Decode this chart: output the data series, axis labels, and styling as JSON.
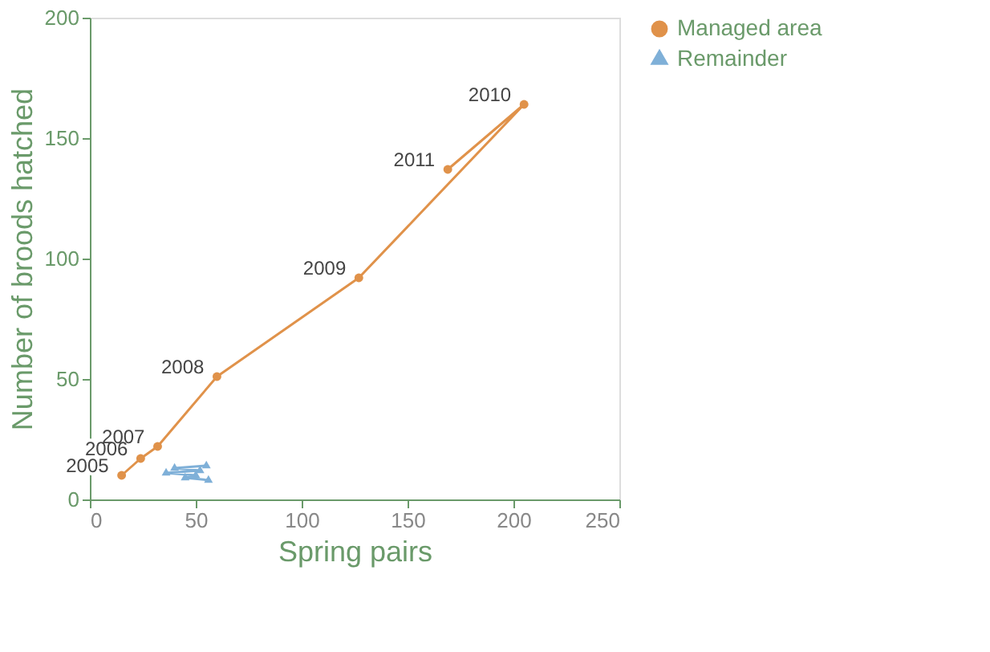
{
  "chart_data": {
    "type": "line",
    "xlabel": "Spring pairs",
    "ylabel": "Number of broods hatched",
    "series": [
      {
        "name": "Managed area",
        "color": "#e0924a",
        "marker": "circle",
        "x": [
          15,
          24,
          32,
          60,
          127,
          205,
          169
        ],
        "values": [
          10,
          17,
          22,
          51,
          92,
          164,
          137
        ]
      },
      {
        "name": "Remainder",
        "color": "#7fb0d8",
        "marker": "triangle",
        "x": [
          55,
          40,
          52,
          36,
          50,
          45,
          56
        ],
        "values": [
          14,
          13,
          12,
          11,
          10,
          9,
          8
        ]
      }
    ],
    "annotations": [
      {
        "text": "2005",
        "x": 15,
        "y": 10
      },
      {
        "text": "2006",
        "x": 24,
        "y": 17
      },
      {
        "text": "2007",
        "x": 32,
        "y": 22
      },
      {
        "text": "2008",
        "x": 60,
        "y": 51
      },
      {
        "text": "2009",
        "x": 127,
        "y": 92
      },
      {
        "text": "2010",
        "x": 205,
        "y": 164
      },
      {
        "text": "2011",
        "x": 169,
        "y": 137
      }
    ],
    "xlim": [
      0,
      250
    ],
    "xticks": [
      0,
      50,
      100,
      150,
      200,
      250
    ],
    "ylim": [
      0,
      200
    ],
    "yticks": [
      0,
      50,
      100,
      150,
      200
    ],
    "grid": false,
    "legend": "right",
    "line_style": "solid"
  }
}
